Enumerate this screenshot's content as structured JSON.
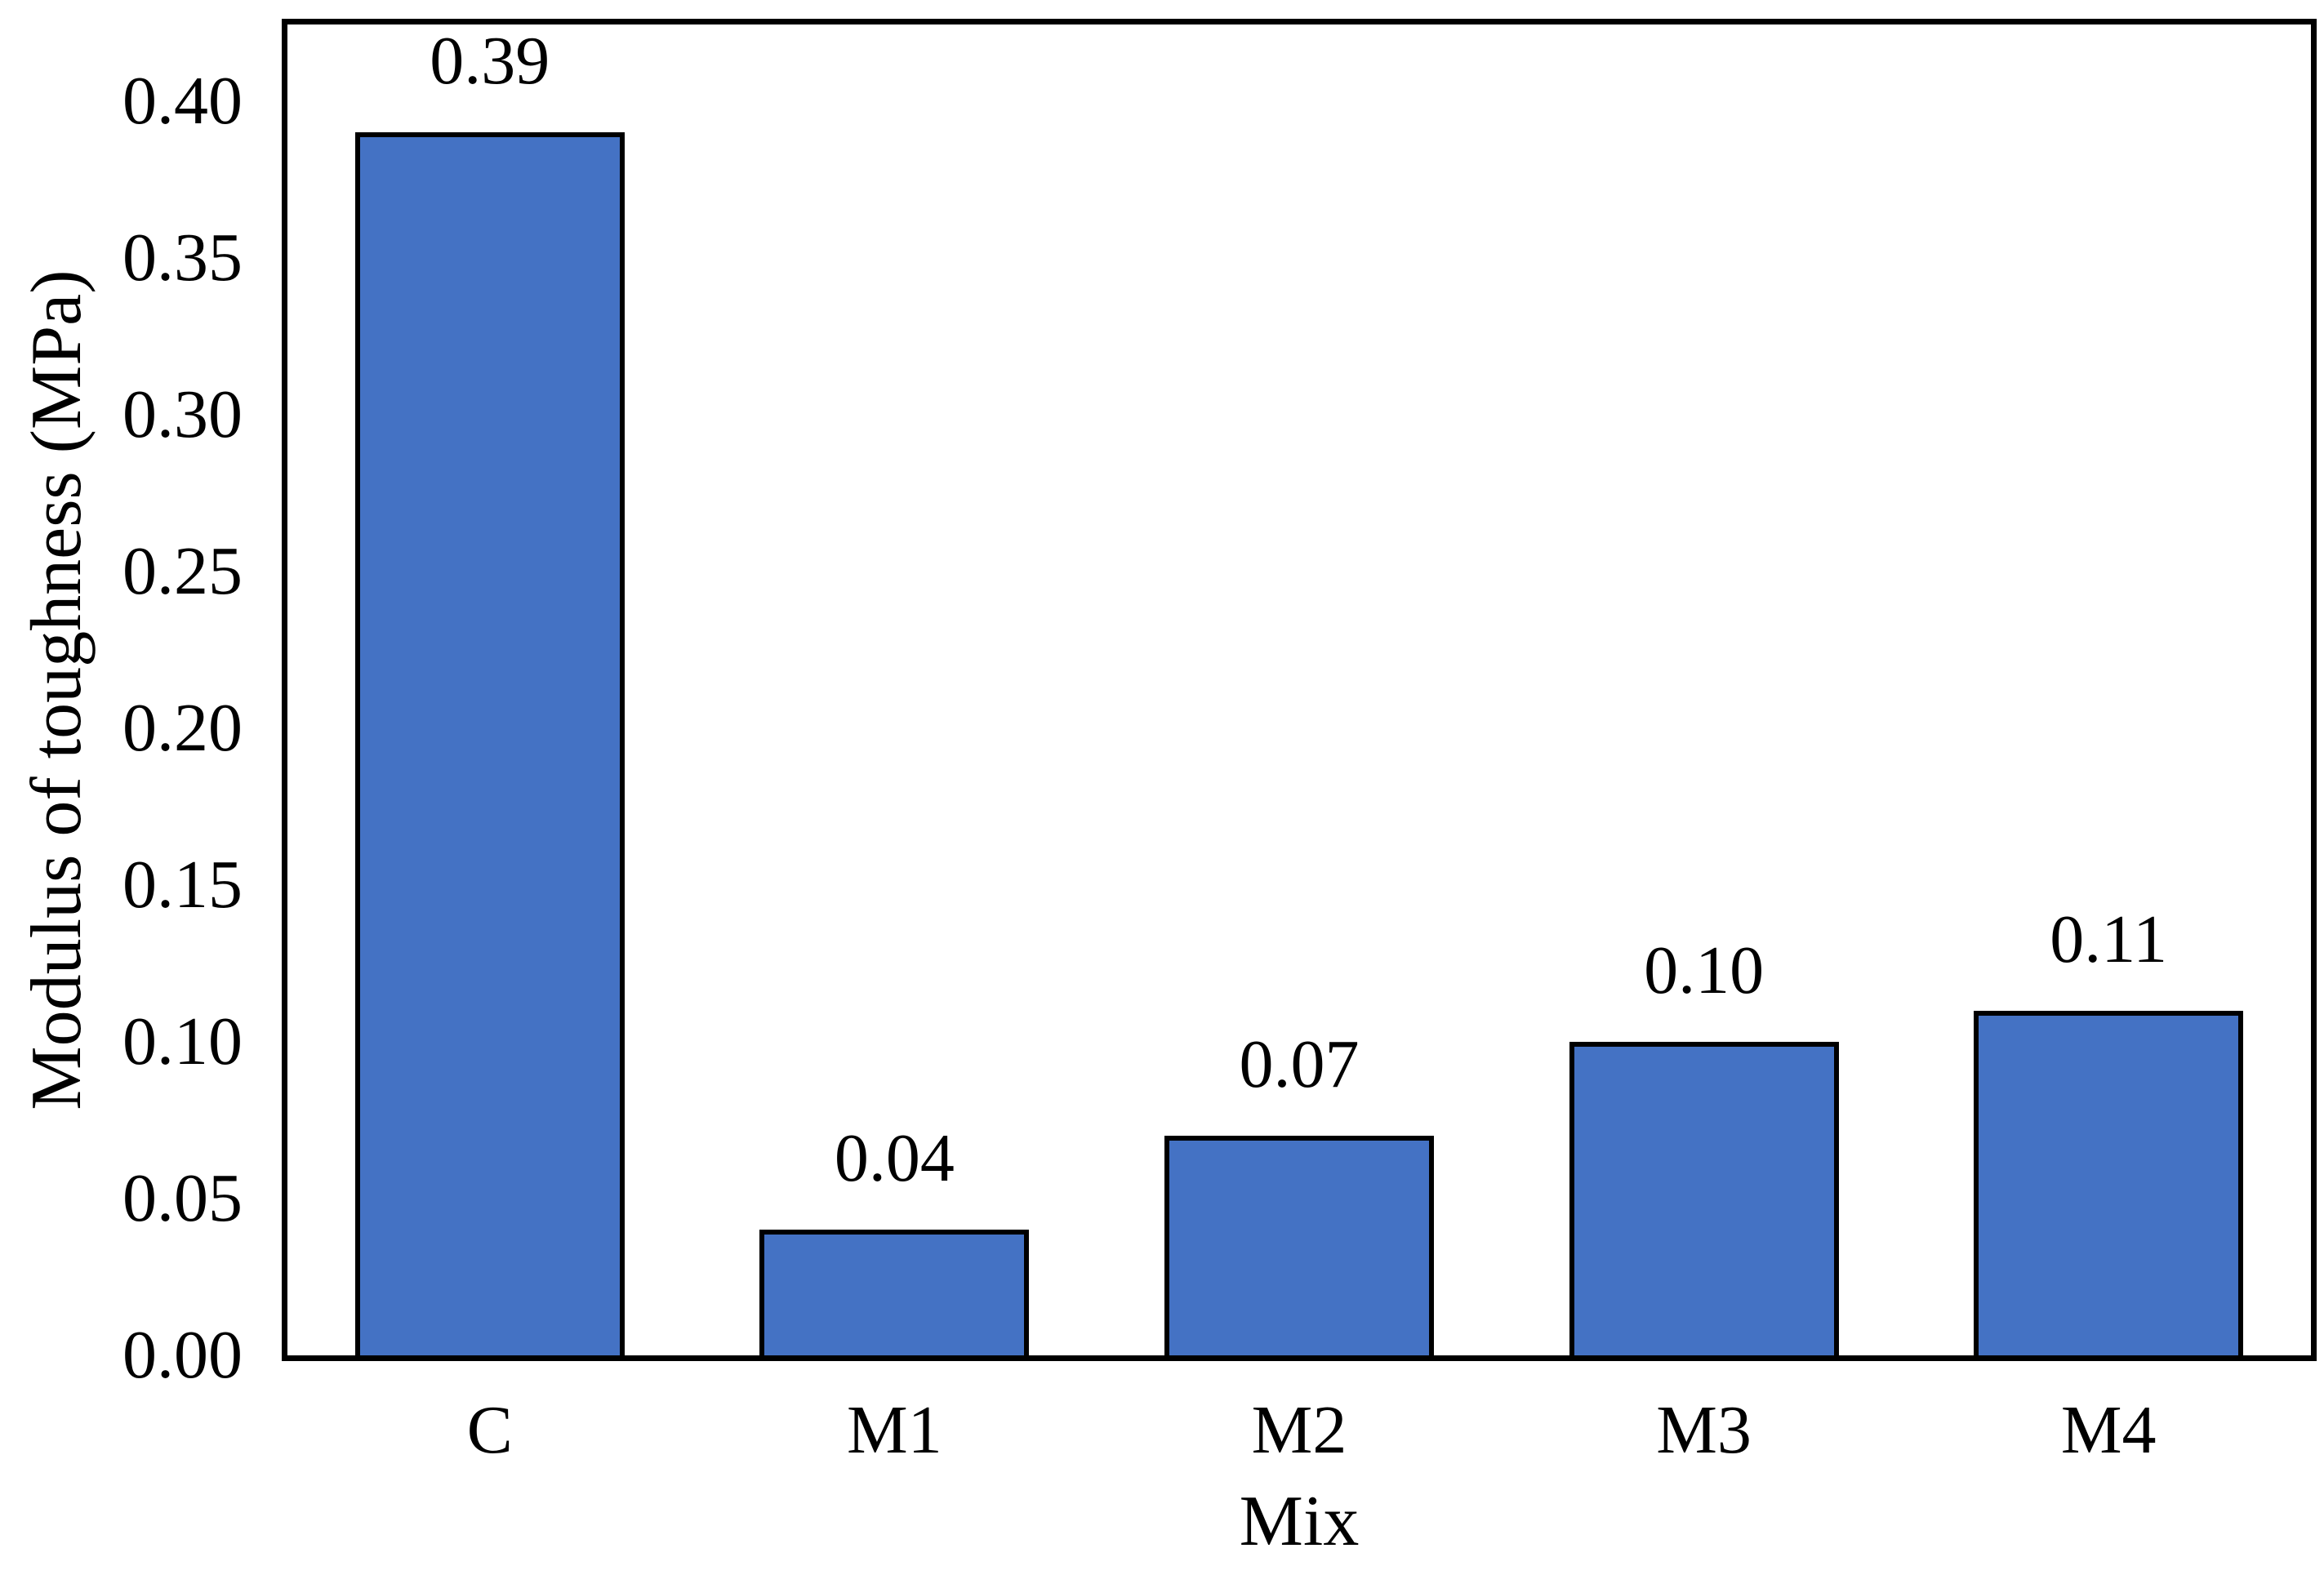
{
  "chart_data": {
    "type": "bar",
    "categories": [
      "C",
      "M1",
      "M2",
      "M3",
      "M4"
    ],
    "values": [
      0.39,
      0.04,
      0.07,
      0.1,
      0.11
    ],
    "value_labels": [
      "0.39",
      "0.04",
      "0.07",
      "0.10",
      "0.11"
    ],
    "title": "",
    "xlabel": "Mix",
    "ylabel": "Modulus of toughness (MPa)",
    "yticks": [
      "0.00",
      "0.05",
      "0.10",
      "0.15",
      "0.20",
      "0.25",
      "0.30",
      "0.35",
      "0.40"
    ],
    "ylim": [
      0,
      0.4245
    ],
    "grid": false,
    "legend": null,
    "bar_color": "#4472C4",
    "bar_border_color": "#000000",
    "axis_color": "#000000",
    "background_color": "#FFFFFF"
  }
}
